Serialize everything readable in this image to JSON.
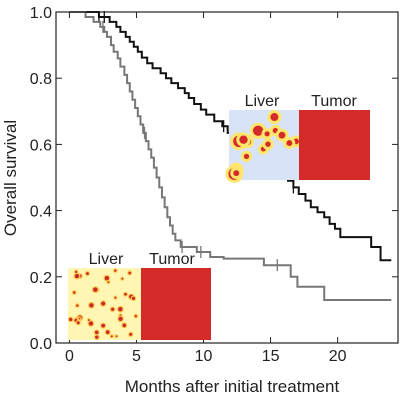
{
  "chart_data": {
    "type": "line",
    "step": true,
    "xlabel": "Months after initial treatment",
    "ylabel": "Overall survival",
    "xlim": [
      -1,
      24.5
    ],
    "ylim": [
      0,
      1.0
    ],
    "xticks": [
      0,
      5,
      10,
      15,
      20
    ],
    "yticks": [
      0.0,
      0.2,
      0.4,
      0.6,
      0.8,
      1.0
    ],
    "grid": false,
    "legend": "none",
    "series": [
      {
        "color": "#111111",
        "points": [
          [
            0,
            1.0
          ],
          [
            1.5,
            1.0
          ],
          [
            2.2,
            0.985
          ],
          [
            3,
            0.97
          ],
          [
            3.5,
            0.955
          ],
          [
            3.8,
            0.94
          ],
          [
            4.2,
            0.925
          ],
          [
            4.5,
            0.91
          ],
          [
            4.8,
            0.895
          ],
          [
            5.1,
            0.88
          ],
          [
            5.4,
            0.862
          ],
          [
            5.8,
            0.845
          ],
          [
            6.2,
            0.83
          ],
          [
            6.8,
            0.815
          ],
          [
            7.2,
            0.8
          ],
          [
            7.6,
            0.785
          ],
          [
            8.1,
            0.77
          ],
          [
            8.6,
            0.755
          ],
          [
            8.9,
            0.74
          ],
          [
            9.3,
            0.722
          ],
          [
            9.8,
            0.705
          ],
          [
            10.2,
            0.69
          ],
          [
            10.8,
            0.67
          ],
          [
            11.4,
            0.655
          ],
          [
            11.8,
            0.635
          ],
          [
            12.3,
            0.618
          ],
          [
            12.8,
            0.6
          ],
          [
            13.3,
            0.58
          ],
          [
            14.5,
            0.565
          ],
          [
            15.5,
            0.545
          ],
          [
            15.9,
            0.51
          ],
          [
            16.3,
            0.49
          ],
          [
            16.7,
            0.47
          ],
          [
            17.1,
            0.45
          ],
          [
            17.6,
            0.43
          ],
          [
            18.0,
            0.41
          ],
          [
            18.5,
            0.395
          ],
          [
            19.0,
            0.38
          ],
          [
            19.4,
            0.36
          ],
          [
            19.8,
            0.345
          ],
          [
            20.2,
            0.32
          ],
          [
            22.5,
            0.29
          ],
          [
            23.2,
            0.25
          ],
          [
            24.0,
            0.25
          ]
        ],
        "censored": [
          [
            2.2,
            0.985
          ],
          [
            2.6,
            0.985
          ],
          [
            11.5,
            0.655
          ],
          [
            14.8,
            0.565
          ],
          [
            16.7,
            0.47
          ]
        ]
      },
      {
        "color": "#777777",
        "points": [
          [
            0,
            1.0
          ],
          [
            1.2,
            0.985
          ],
          [
            1.8,
            0.97
          ],
          [
            2.3,
            0.955
          ],
          [
            2.6,
            0.94
          ],
          [
            2.8,
            0.925
          ],
          [
            3.1,
            0.9
          ],
          [
            3.3,
            0.88
          ],
          [
            3.6,
            0.86
          ],
          [
            3.8,
            0.835
          ],
          [
            4.1,
            0.81
          ],
          [
            4.3,
            0.785
          ],
          [
            4.5,
            0.76
          ],
          [
            4.7,
            0.735
          ],
          [
            4.9,
            0.71
          ],
          [
            5.1,
            0.685
          ],
          [
            5.3,
            0.66
          ],
          [
            5.5,
            0.635
          ],
          [
            5.7,
            0.61
          ],
          [
            5.9,
            0.585
          ],
          [
            6.1,
            0.56
          ],
          [
            6.3,
            0.53
          ],
          [
            6.5,
            0.5
          ],
          [
            6.7,
            0.47
          ],
          [
            6.9,
            0.44
          ],
          [
            7.1,
            0.41
          ],
          [
            7.3,
            0.38
          ],
          [
            7.5,
            0.355
          ],
          [
            7.7,
            0.33
          ],
          [
            7.9,
            0.31
          ],
          [
            8.3,
            0.29
          ],
          [
            9.5,
            0.275
          ],
          [
            10.5,
            0.26
          ],
          [
            11.5,
            0.255
          ],
          [
            14.5,
            0.235
          ],
          [
            16.5,
            0.2
          ],
          [
            17.0,
            0.17
          ],
          [
            19.0,
            0.13
          ],
          [
            24.0,
            0.13
          ]
        ],
        "censored": [
          [
            2.5,
            0.955
          ],
          [
            5.6,
            0.635
          ],
          [
            8.4,
            0.29
          ],
          [
            9.8,
            0.275
          ],
          [
            15.5,
            0.235
          ]
        ]
      }
    ]
  },
  "insets": [
    {
      "liver_label": "Liver",
      "tumor_label": "Tumor",
      "pattern": "sparse-patches",
      "liver_color": "#d8e3f7",
      "tumor_color": "#d42a2a"
    },
    {
      "liver_label": "Liver",
      "tumor_label": "Tumor",
      "pattern": "fine-speckles",
      "liver_color": "#fff6b3",
      "tumor_color": "#d42a2a"
    }
  ]
}
